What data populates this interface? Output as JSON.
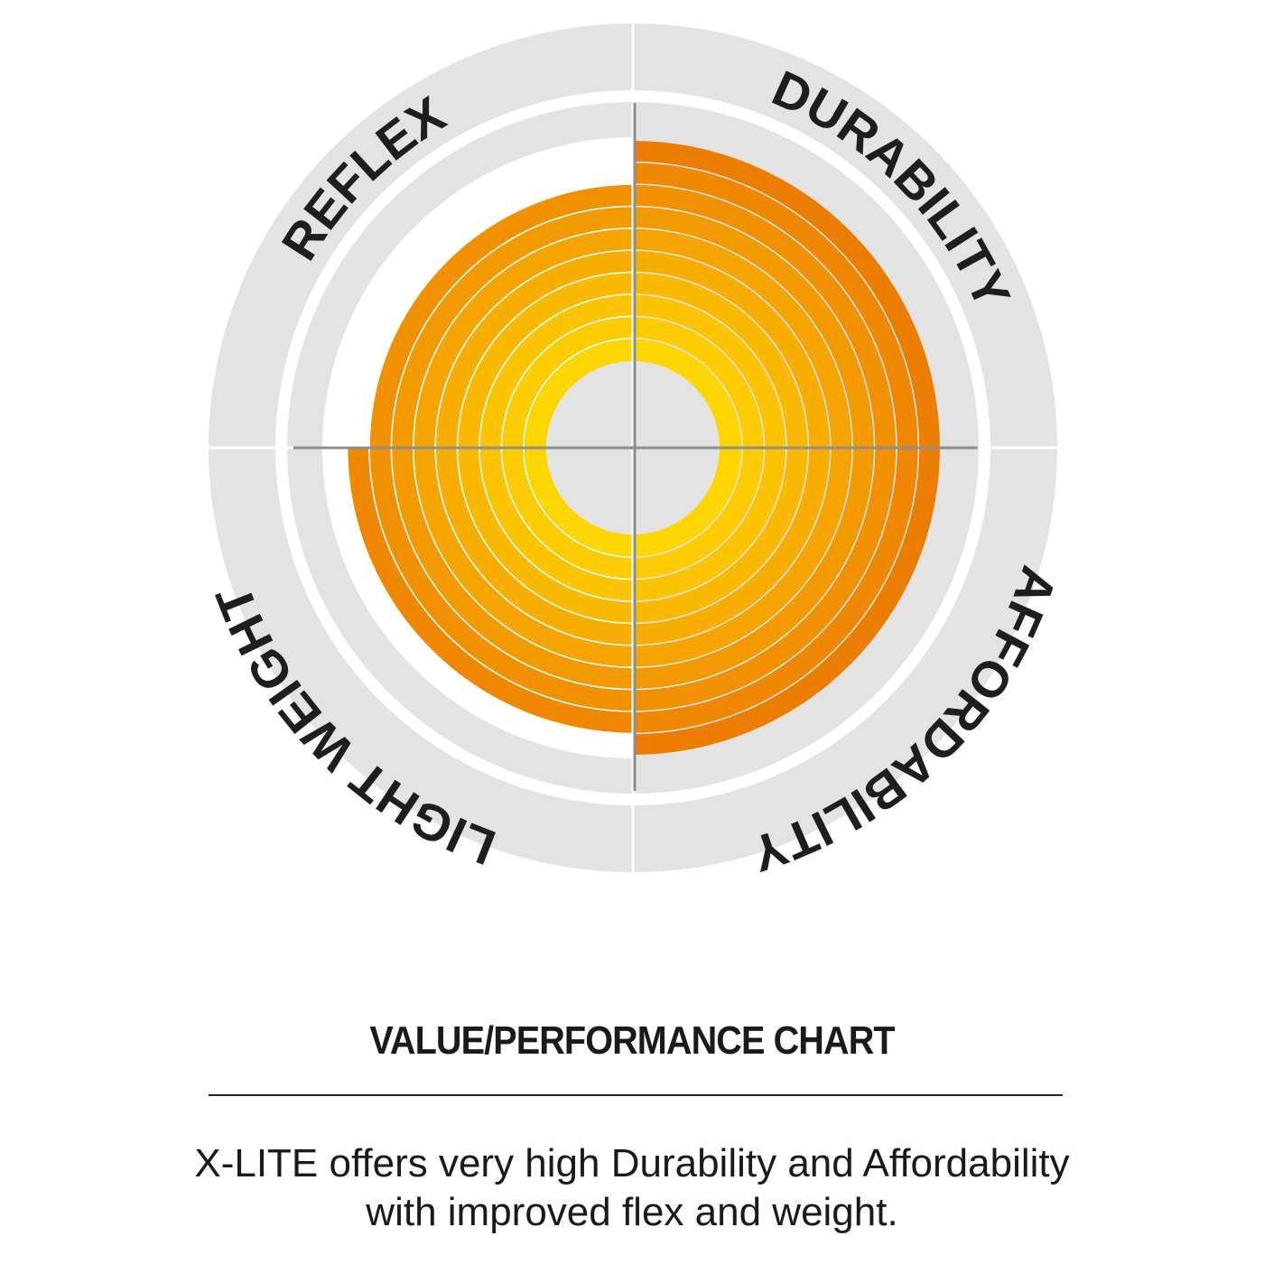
{
  "chart_data": {
    "type": "radial-quadrant",
    "title": "VALUE/PERFORMANCE CHART",
    "scale_max": 10,
    "categories": [
      "REFLEX",
      "DURABILITY",
      "AFFORDABILITY",
      "LIGHT WEIGHT"
    ],
    "values": [
      8,
      10,
      10,
      9
    ],
    "ring_colors": [
      "#FDD500",
      "#FCCC00",
      "#FBC300",
      "#F9B900",
      "#F7AE00",
      "#F5A400",
      "#F39A00",
      "#F19000",
      "#EF8700",
      "#EB7D00"
    ],
    "track_color": "#E3E3E3",
    "crosshair_color": "#8E8E8E"
  },
  "description": {
    "line1": "X-LITE offers very high Durability and Affordability",
    "line2": "with improved flex and weight."
  }
}
